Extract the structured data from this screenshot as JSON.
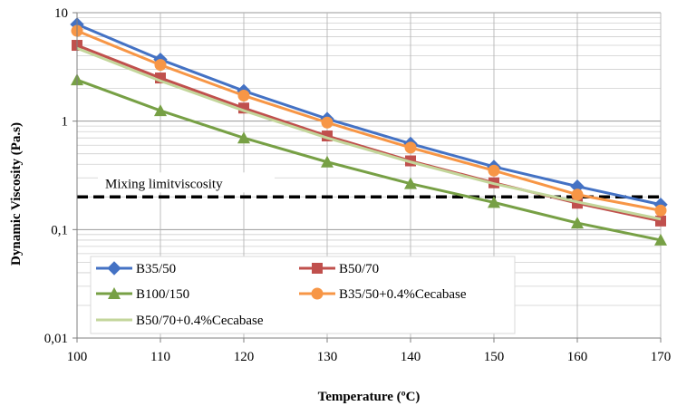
{
  "chart_data": {
    "type": "line",
    "xlabel": "Temperature (ºC)",
    "ylabel": "Dynamic Viscosity (Pa.s)",
    "x": [
      100,
      110,
      120,
      130,
      140,
      150,
      160,
      170
    ],
    "xlim": [
      100,
      170
    ],
    "ylim": [
      0.01,
      10
    ],
    "yscale": "log",
    "x_ticks": [
      "100",
      "110",
      "120",
      "130",
      "140",
      "150",
      "160",
      "170"
    ],
    "y_ticks": [
      {
        "value": 10,
        "label": "10"
      },
      {
        "value": 1,
        "label": "1"
      },
      {
        "value": 0.1,
        "label": "0,1"
      },
      {
        "value": 0.01,
        "label": "0,01"
      }
    ],
    "grid": true,
    "legend": "bottom-left",
    "series": [
      {
        "name": "B35/50",
        "color": "#4472c4",
        "marker": "diamond",
        "values": [
          7.8,
          3.7,
          1.9,
          1.05,
          0.62,
          0.38,
          0.25,
          0.17
        ]
      },
      {
        "name": "B50/70",
        "color": "#c0504d",
        "marker": "square",
        "values": [
          5.0,
          2.5,
          1.32,
          0.73,
          0.43,
          0.27,
          0.175,
          0.12
        ]
      },
      {
        "name": "B100/150",
        "color": "#77a045",
        "marker": "triangle",
        "values": [
          2.4,
          1.25,
          0.7,
          0.42,
          0.265,
          0.178,
          0.115,
          0.08
        ]
      },
      {
        "name": "B35/50+0.4%Cecabase",
        "color": "#f79646",
        "marker": "circle",
        "values": [
          6.8,
          3.3,
          1.72,
          0.97,
          0.57,
          0.35,
          0.21,
          0.15
        ]
      },
      {
        "name": "B50/70+0.4%Cecabase",
        "color": "#c3d69b",
        "marker": "none",
        "values": [
          4.7,
          2.35,
          1.25,
          0.7,
          0.42,
          0.265,
          0.18,
          0.125
        ]
      }
    ],
    "reference_line": {
      "label": "Mixing limitviscosity",
      "value": 0.2,
      "color": "#000000",
      "style": "dashed"
    }
  }
}
